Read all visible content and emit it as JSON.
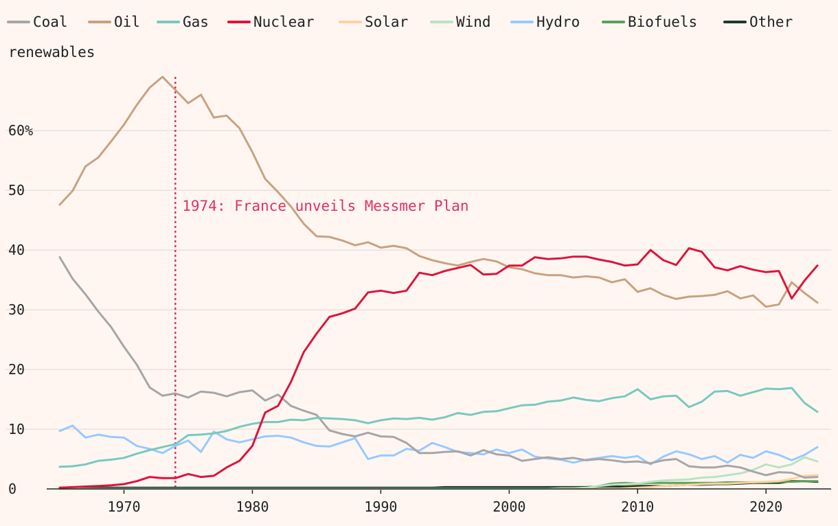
{
  "chart_data": {
    "type": "line",
    "title": "",
    "xlabel": "",
    "ylabel": "",
    "xlim": [
      1965,
      2024
    ],
    "ylim": [
      0,
      70
    ],
    "x_ticks": [
      1970,
      1980,
      1990,
      2000,
      2010,
      2020
    ],
    "y_ticks": [
      0,
      10,
      20,
      30,
      40,
      50,
      60
    ],
    "y_tick_labels": [
      "0",
      "10",
      "20",
      "30",
      "40",
      "50",
      "60%"
    ],
    "legend_placement": "top",
    "grid": "horizontal",
    "annotation": {
      "x": 1974,
      "text": "1974: France unveils Messmer Plan",
      "color": "#e0315f"
    },
    "years": [
      1965,
      1966,
      1967,
      1968,
      1969,
      1970,
      1971,
      1972,
      1973,
      1974,
      1975,
      1976,
      1977,
      1978,
      1979,
      1980,
      1981,
      1982,
      1983,
      1984,
      1985,
      1986,
      1987,
      1988,
      1989,
      1990,
      1991,
      1992,
      1993,
      1994,
      1995,
      1996,
      1997,
      1998,
      1999,
      2000,
      2001,
      2002,
      2003,
      2004,
      2005,
      2006,
      2007,
      2008,
      2009,
      2010,
      2011,
      2012,
      2013,
      2014,
      2015,
      2016,
      2017,
      2018,
      2019,
      2020,
      2021,
      2022,
      2023,
      2024
    ],
    "series": [
      {
        "name": "Coal",
        "color": "#a6a6a6",
        "values": [
          38.8,
          35.2,
          32.6,
          29.7,
          27.1,
          23.8,
          20.8,
          17.0,
          15.6,
          16.0,
          15.3,
          16.3,
          16.1,
          15.5,
          16.2,
          16.5,
          14.8,
          15.8,
          13.9,
          13.1,
          12.4,
          9.8,
          9.2,
          8.8,
          9.4,
          8.8,
          8.7,
          7.7,
          6.0,
          6.0,
          6.2,
          6.3,
          5.6,
          6.5,
          5.8,
          5.6,
          4.7,
          5.0,
          5.3,
          5.0,
          5.2,
          4.8,
          5.0,
          4.8,
          4.5,
          4.6,
          4.3,
          4.8,
          5.0,
          3.8,
          3.6,
          3.6,
          3.9,
          3.6,
          2.9,
          2.3,
          2.8,
          2.7,
          1.9,
          2.0
        ]
      },
      {
        "name": "Oil",
        "color": "#c8a27f",
        "values": [
          47.6,
          49.9,
          54.0,
          55.5,
          58.2,
          61.0,
          64.3,
          67.2,
          69.0,
          66.8,
          64.6,
          66.0,
          62.2,
          62.5,
          60.4,
          56.4,
          51.9,
          49.7,
          47.3,
          44.4,
          42.3,
          42.2,
          41.6,
          40.8,
          41.3,
          40.4,
          40.7,
          40.3,
          39.0,
          38.3,
          37.8,
          37.4,
          38.0,
          38.5,
          38.1,
          37.1,
          36.8,
          36.1,
          35.8,
          35.8,
          35.4,
          35.6,
          35.4,
          34.6,
          35.1,
          33.0,
          33.6,
          32.5,
          31.8,
          32.2,
          32.3,
          32.5,
          33.1,
          31.9,
          32.4,
          30.5,
          30.9,
          34.6,
          32.8,
          31.2
        ]
      },
      {
        "name": "Gas",
        "color": "#78c9bd",
        "values": [
          3.7,
          3.8,
          4.1,
          4.7,
          4.9,
          5.2,
          5.9,
          6.5,
          7.0,
          7.5,
          9.0,
          9.1,
          9.3,
          9.7,
          10.4,
          10.9,
          11.2,
          11.2,
          11.6,
          11.5,
          11.9,
          11.8,
          11.7,
          11.5,
          11.0,
          11.5,
          11.8,
          11.7,
          11.9,
          11.6,
          12.0,
          12.7,
          12.4,
          12.9,
          13.0,
          13.5,
          14.0,
          14.1,
          14.6,
          14.8,
          15.3,
          14.9,
          14.7,
          15.2,
          15.5,
          16.7,
          15.0,
          15.5,
          15.6,
          13.7,
          14.6,
          16.3,
          16.4,
          15.6,
          16.2,
          16.8,
          16.7,
          16.9,
          14.4,
          12.9
        ]
      },
      {
        "name": "Nuclear",
        "color": "#dc143c",
        "values": [
          0.2,
          0.3,
          0.4,
          0.5,
          0.6,
          0.8,
          1.3,
          2.0,
          1.8,
          1.8,
          2.5,
          2.0,
          2.2,
          3.6,
          4.7,
          7.2,
          12.8,
          13.9,
          17.9,
          22.9,
          26.0,
          28.8,
          29.4,
          30.2,
          32.9,
          33.2,
          32.8,
          33.2,
          36.2,
          35.8,
          36.5,
          37.0,
          37.5,
          35.9,
          36.0,
          37.4,
          37.4,
          38.8,
          38.5,
          38.6,
          38.9,
          38.9,
          38.4,
          38.0,
          37.4,
          37.6,
          40.0,
          38.3,
          37.5,
          40.3,
          39.7,
          37.1,
          36.6,
          37.3,
          36.7,
          36.3,
          36.5,
          31.9,
          34.9,
          37.4
        ]
      },
      {
        "name": "Solar",
        "color": "#fdd49e",
        "values": [
          0,
          0,
          0,
          0,
          0,
          0,
          0,
          0,
          0,
          0,
          0,
          0,
          0,
          0,
          0,
          0,
          0,
          0,
          0,
          0,
          0,
          0,
          0,
          0,
          0,
          0,
          0,
          0,
          0,
          0,
          0,
          0,
          0,
          0,
          0,
          0,
          0,
          0,
          0,
          0,
          0,
          0,
          0,
          0,
          0.1,
          0.2,
          0.3,
          0.5,
          0.6,
          0.7,
          0.8,
          0.9,
          0.9,
          1.0,
          1.1,
          1.2,
          1.3,
          1.7,
          2.2,
          2.3
        ]
      },
      {
        "name": "Wind",
        "color": "#b7e4c2",
        "values": [
          0,
          0,
          0,
          0,
          0,
          0,
          0,
          0,
          0,
          0,
          0,
          0,
          0,
          0,
          0,
          0,
          0,
          0,
          0,
          0,
          0,
          0,
          0,
          0,
          0,
          0,
          0,
          0,
          0,
          0,
          0,
          0,
          0,
          0,
          0,
          0,
          0,
          0,
          0,
          0.1,
          0.1,
          0.2,
          0.5,
          0.7,
          0.8,
          0.9,
          1.2,
          1.4,
          1.5,
          1.6,
          1.9,
          2.0,
          2.3,
          2.6,
          3.2,
          4.1,
          3.6,
          4.1,
          5.3,
          4.6
        ]
      },
      {
        "name": "Hydro",
        "color": "#96caff",
        "values": [
          9.7,
          10.6,
          8.6,
          9.1,
          8.7,
          8.6,
          7.2,
          6.7,
          6.0,
          7.2,
          8.1,
          6.2,
          9.6,
          8.3,
          7.8,
          8.3,
          8.8,
          8.9,
          8.6,
          7.8,
          7.2,
          7.1,
          7.8,
          8.5,
          5.0,
          5.6,
          5.6,
          6.7,
          6.4,
          7.7,
          7.0,
          6.2,
          6.0,
          5.8,
          6.6,
          6.0,
          6.6,
          5.4,
          5.1,
          4.9,
          4.4,
          4.9,
          5.2,
          5.5,
          5.2,
          5.5,
          4.1,
          5.4,
          6.3,
          5.8,
          5.0,
          5.5,
          4.4,
          5.7,
          5.2,
          6.3,
          5.7,
          4.8,
          5.7,
          7.0
        ]
      },
      {
        "name": "Biofuels",
        "color": "#5aa05a",
        "values": [
          0,
          0,
          0,
          0,
          0,
          0,
          0,
          0,
          0,
          0,
          0,
          0,
          0,
          0,
          0,
          0,
          0,
          0,
          0,
          0,
          0,
          0,
          0,
          0,
          0,
          0,
          0,
          0,
          0,
          0,
          0,
          0,
          0,
          0,
          0,
          0,
          0,
          0,
          0,
          0,
          0.1,
          0.1,
          0.5,
          0.9,
          1.0,
          0.9,
          1.0,
          1.0,
          1.0,
          1.0,
          1.0,
          1.0,
          1.1,
          1.1,
          1.1,
          1.1,
          1.2,
          1.2,
          1.3,
          1.3
        ]
      },
      {
        "name": "Other renewables",
        "color": "#1f3a2a",
        "values": [
          0.2,
          0.2,
          0.2,
          0.2,
          0.2,
          0.2,
          0.2,
          0.2,
          0.2,
          0.2,
          0.2,
          0.2,
          0.2,
          0.2,
          0.2,
          0.2,
          0.2,
          0.2,
          0.2,
          0.2,
          0.2,
          0.2,
          0.2,
          0.2,
          0.2,
          0.2,
          0.2,
          0.2,
          0.2,
          0.2,
          0.3,
          0.3,
          0.3,
          0.3,
          0.3,
          0.3,
          0.3,
          0.3,
          0.3,
          0.3,
          0.3,
          0.3,
          0.4,
          0.4,
          0.4,
          0.5,
          0.5,
          0.5,
          0.6,
          0.7,
          0.7,
          0.8,
          0.8,
          0.9,
          1.0,
          1.0,
          1.0,
          1.3,
          1.3,
          1.2
        ]
      }
    ]
  }
}
